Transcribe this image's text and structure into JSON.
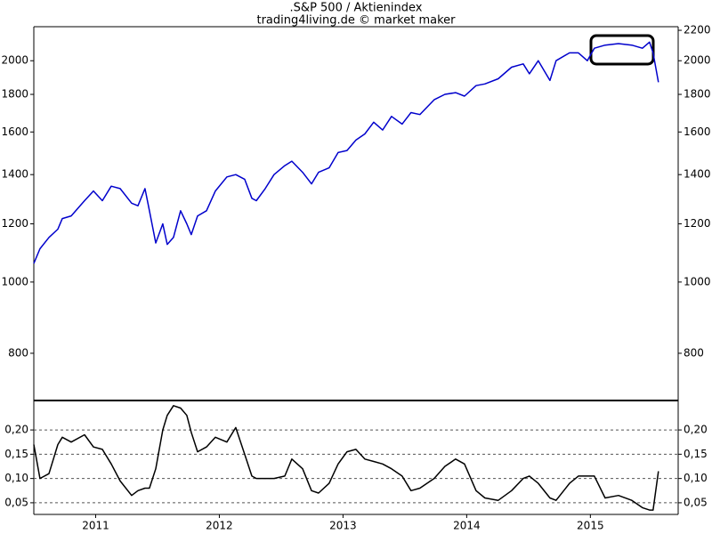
{
  "chart_data": [
    {
      "type": "line",
      "title": ".S&P 500 / Aktienindex",
      "subtitle": "trading4living.de © market maker",
      "yscale": "log",
      "x": [
        2010.5,
        2010.55,
        2010.622,
        2010.694,
        2010.73,
        2010.802,
        2010.91,
        2010.982,
        2011.054,
        2011.126,
        2011.198,
        2011.291,
        2011.342,
        2011.399,
        2011.435,
        2011.486,
        2011.543,
        2011.579,
        2011.629,
        2011.687,
        2011.737,
        2011.773,
        2011.824,
        2011.896,
        2011.968,
        2012.061,
        2012.133,
        2012.205,
        2012.263,
        2012.299,
        2012.371,
        2012.442,
        2012.529,
        2012.586,
        2012.673,
        2012.745,
        2012.802,
        2012.888,
        2012.96,
        2013.032,
        2013.104,
        2013.176,
        2013.248,
        2013.32,
        2013.392,
        2013.478,
        2013.55,
        2013.622,
        2013.737,
        2013.824,
        2013.91,
        2013.982,
        2014.076,
        2014.147,
        2014.255,
        2014.363,
        2014.457,
        2014.507,
        2014.579,
        2014.673,
        2014.723,
        2014.831,
        2014.903,
        2014.975,
        2015.032,
        2015.119,
        2015.227,
        2015.335,
        2015.421,
        2015.478,
        2015.507,
        2015.55
      ],
      "series": [
        {
          "color": "#0000cc",
          "values": [
            1060,
            1110,
            1150,
            1180,
            1220,
            1230,
            1290,
            1330,
            1290,
            1350,
            1340,
            1280,
            1270,
            1340,
            1250,
            1130,
            1200,
            1125,
            1150,
            1250,
            1200,
            1160,
            1230,
            1250,
            1330,
            1390,
            1400,
            1380,
            1300,
            1290,
            1340,
            1400,
            1440,
            1460,
            1410,
            1360,
            1410,
            1430,
            1500,
            1510,
            1560,
            1590,
            1650,
            1610,
            1680,
            1640,
            1700,
            1690,
            1770,
            1800,
            1810,
            1790,
            1850,
            1860,
            1890,
            1960,
            1980,
            1920,
            2000,
            1880,
            2000,
            2050,
            2050,
            2000,
            2080,
            2100,
            2110,
            2100,
            2080,
            2120,
            2050,
            1870
          ]
        }
      ],
      "xlim": [
        2010.5,
        2015.71
      ],
      "ylim": [
        690,
        2225
      ],
      "yticks": [
        800,
        1000,
        1200,
        1400,
        1600,
        1800,
        2000
      ],
      "y2lim": [
        690,
        2225
      ],
      "y2ticks": [
        800,
        1000,
        1200,
        1400,
        1600,
        1800,
        2000,
        2200
      ]
    },
    {
      "type": "line",
      "x": [
        2010.5,
        2010.55,
        2010.622,
        2010.694,
        2010.73,
        2010.802,
        2010.91,
        2010.982,
        2011.054,
        2011.126,
        2011.198,
        2011.291,
        2011.342,
        2011.399,
        2011.435,
        2011.486,
        2011.543,
        2011.579,
        2011.629,
        2011.687,
        2011.737,
        2011.773,
        2011.824,
        2011.896,
        2011.968,
        2012.061,
        2012.133,
        2012.205,
        2012.263,
        2012.299,
        2012.371,
        2012.442,
        2012.529,
        2012.586,
        2012.673,
        2012.745,
        2012.802,
        2012.888,
        2012.96,
        2013.032,
        2013.104,
        2013.176,
        2013.248,
        2013.32,
        2013.392,
        2013.478,
        2013.55,
        2013.622,
        2013.737,
        2013.824,
        2013.91,
        2013.982,
        2014.076,
        2014.147,
        2014.255,
        2014.363,
        2014.457,
        2014.507,
        2014.579,
        2014.673,
        2014.723,
        2014.831,
        2014.903,
        2014.975,
        2015.032,
        2015.119,
        2015.227,
        2015.335,
        2015.421,
        2015.478,
        2015.507,
        2015.55
      ],
      "series": [
        {
          "color": "#000000",
          "values": [
            0.17,
            0.1,
            0.11,
            0.17,
            0.185,
            0.175,
            0.19,
            0.165,
            0.16,
            0.13,
            0.095,
            0.065,
            0.075,
            0.08,
            0.08,
            0.12,
            0.2,
            0.23,
            0.25,
            0.245,
            0.23,
            0.195,
            0.155,
            0.165,
            0.185,
            0.175,
            0.205,
            0.15,
            0.105,
            0.1,
            0.1,
            0.1,
            0.105,
            0.14,
            0.12,
            0.075,
            0.07,
            0.09,
            0.13,
            0.155,
            0.16,
            0.14,
            0.135,
            0.13,
            0.12,
            0.105,
            0.075,
            0.08,
            0.1,
            0.125,
            0.14,
            0.13,
            0.075,
            0.06,
            0.055,
            0.075,
            0.1,
            0.105,
            0.09,
            0.06,
            0.055,
            0.09,
            0.105,
            0.105,
            0.105,
            0.06,
            0.065,
            0.055,
            0.04,
            0.035,
            0.035,
            0.115
          ]
        }
      ],
      "xlim": [
        2010.5,
        2015.71
      ],
      "xticks": [
        2011,
        2012,
        2013,
        2014,
        2015
      ],
      "ylim": [
        0.026,
        0.257
      ],
      "yticks": [
        {
          "value": 0.05,
          "label": "0,05"
        },
        {
          "value": 0.1,
          "label": "0,10"
        },
        {
          "value": 0.15,
          "label": "0,15"
        },
        {
          "value": 0.2,
          "label": "0,20"
        }
      ],
      "y2lim": [
        0.026,
        0.257
      ],
      "y2ticks": [
        {
          "value": 0.05,
          "label": "0,05"
        },
        {
          "value": 0.1,
          "label": "0,10"
        },
        {
          "value": 0.15,
          "label": "0,15"
        },
        {
          "value": 0.2,
          "label": "0,20"
        }
      ],
      "grid": true
    }
  ]
}
